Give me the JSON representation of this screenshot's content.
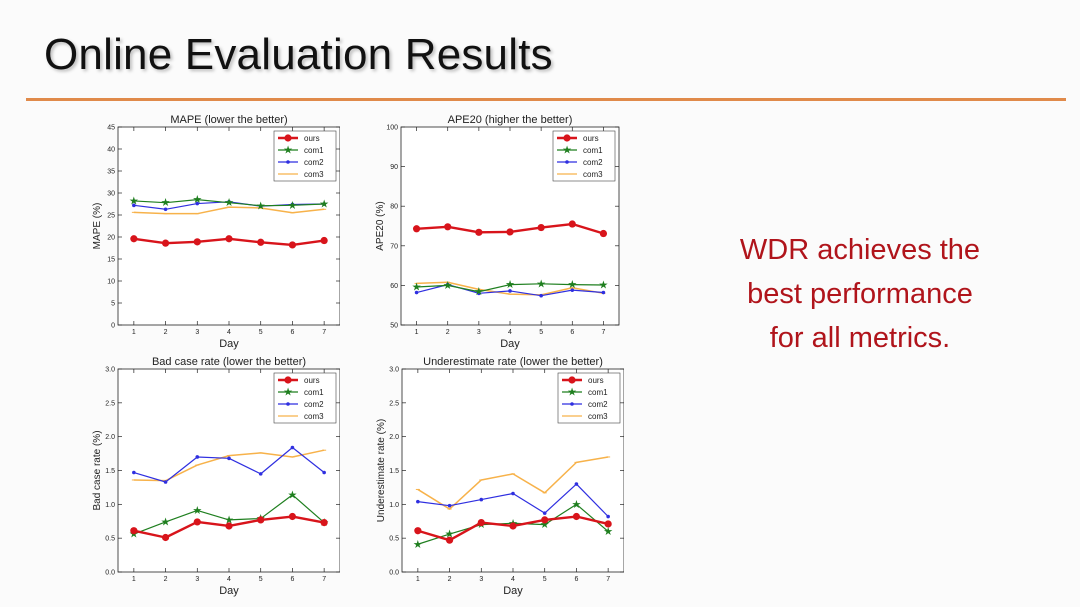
{
  "slide": {
    "title": "Online Evaluation Results",
    "claim": [
      "WDR achieves the",
      "best performance",
      "for all metrics."
    ]
  },
  "colors": {
    "ours": "#d8141b",
    "com1": "#1f7f1f",
    "com2": "#2f2fe0",
    "com3": "#f7b24a",
    "rule": "#e08a4a",
    "claim": "#b0141b"
  },
  "chart_data": [
    {
      "type": "line",
      "title": "MAPE (lower the better)",
      "xlabel": "Day",
      "ylabel": "MAPE (%)",
      "xlim": [
        0.5,
        7.5
      ],
      "ylim": [
        0,
        45
      ],
      "yticks": [
        "0",
        "5",
        "10",
        "15",
        "20",
        "25",
        "30",
        "35",
        "40",
        "45"
      ],
      "x": [
        1,
        2,
        3,
        4,
        5,
        6,
        7
      ],
      "legend": "top-right",
      "series": [
        {
          "name": "ours",
          "values": [
            19.6,
            18.6,
            18.9,
            19.6,
            18.8,
            18.2,
            19.2
          ]
        },
        {
          "name": "com1",
          "values": [
            28.2,
            27.8,
            28.5,
            27.8,
            27.1,
            27.2,
            27.5
          ]
        },
        {
          "name": "com2",
          "values": [
            27.2,
            26.3,
            27.6,
            28.0,
            27.0,
            27.4,
            27.5
          ]
        },
        {
          "name": "com3",
          "values": [
            25.6,
            25.3,
            25.3,
            26.8,
            26.6,
            25.5,
            26.3
          ]
        }
      ]
    },
    {
      "type": "line",
      "title": "APE20 (higher the better)",
      "xlabel": "Day",
      "ylabel": "APE20 (%)",
      "xlim": [
        0.5,
        7.5
      ],
      "ylim": [
        50,
        100
      ],
      "yticks": [
        "50",
        "60",
        "70",
        "80",
        "90",
        "100"
      ],
      "x": [
        1,
        2,
        3,
        4,
        5,
        6,
        7
      ],
      "legend": "top-right",
      "series": [
        {
          "name": "ours",
          "values": [
            74.3,
            74.8,
            73.4,
            73.5,
            74.6,
            75.5,
            73.1
          ]
        },
        {
          "name": "com1",
          "values": [
            59.6,
            60.0,
            58.4,
            60.2,
            60.4,
            60.2,
            60.1
          ]
        },
        {
          "name": "com2",
          "values": [
            58.2,
            60.2,
            58.0,
            58.6,
            57.4,
            58.8,
            58.2
          ]
        },
        {
          "name": "com3",
          "values": [
            60.5,
            60.8,
            59.0,
            57.8,
            57.6,
            59.4,
            58.0
          ]
        }
      ]
    },
    {
      "type": "line",
      "title": "Bad case rate (lower the better)",
      "xlabel": "Day",
      "ylabel": "Bad case rate (%)",
      "xlim": [
        0.5,
        7.5
      ],
      "ylim": [
        0,
        3
      ],
      "yticks": [
        "0.0",
        "0.5",
        "1.0",
        "1.5",
        "2.0",
        "2.5",
        "3.0"
      ],
      "x": [
        1,
        2,
        3,
        4,
        5,
        6,
        7
      ],
      "legend": "top-right",
      "series": [
        {
          "name": "ours",
          "values": [
            0.61,
            0.51,
            0.74,
            0.68,
            0.77,
            0.82,
            0.73
          ]
        },
        {
          "name": "com1",
          "values": [
            0.56,
            0.74,
            0.91,
            0.77,
            0.79,
            1.14,
            0.73
          ]
        },
        {
          "name": "com2",
          "values": [
            1.47,
            1.33,
            1.7,
            1.68,
            1.45,
            1.84,
            1.47
          ]
        },
        {
          "name": "com3",
          "values": [
            1.36,
            1.35,
            1.58,
            1.72,
            1.76,
            1.7,
            1.8
          ]
        }
      ]
    },
    {
      "type": "line",
      "title": "Underestimate rate (lower the better)",
      "xlabel": "Day",
      "ylabel": "Underestimate rate (%)",
      "xlim": [
        0.5,
        7.5
      ],
      "ylim": [
        0,
        3
      ],
      "yticks": [
        "0.0",
        "0.5",
        "1.0",
        "1.5",
        "2.0",
        "2.5",
        "3.0"
      ],
      "x": [
        1,
        2,
        3,
        4,
        5,
        6,
        7
      ],
      "legend": "top-right",
      "series": [
        {
          "name": "ours",
          "values": [
            0.61,
            0.47,
            0.73,
            0.68,
            0.77,
            0.82,
            0.71
          ]
        },
        {
          "name": "com1",
          "values": [
            0.41,
            0.56,
            0.7,
            0.72,
            0.7,
            1.0,
            0.6
          ]
        },
        {
          "name": "com2",
          "values": [
            1.04,
            0.98,
            1.07,
            1.16,
            0.87,
            1.3,
            0.82
          ]
        },
        {
          "name": "com3",
          "values": [
            1.22,
            0.93,
            1.36,
            1.45,
            1.17,
            1.62,
            1.7
          ]
        }
      ]
    }
  ]
}
